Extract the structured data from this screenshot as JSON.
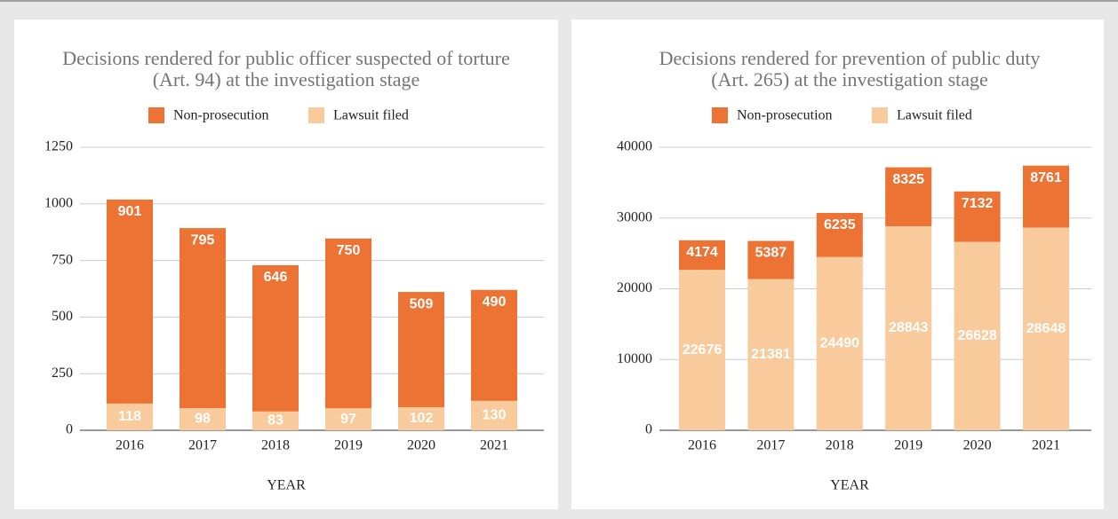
{
  "chart_data": [
    {
      "type": "bar",
      "stacked": true,
      "title": [
        "Decisions rendered for public officer suspected of torture",
        "(Art. 94) at the investigation stage"
      ],
      "xlabel": "YEAR",
      "categories": [
        "2016",
        "2017",
        "2018",
        "2019",
        "2020",
        "2021"
      ],
      "series": [
        {
          "name": "Non-prosecution",
          "color": "#ec7333",
          "values": [
            901,
            795,
            646,
            750,
            509,
            490
          ]
        },
        {
          "name": "Lawsuit filed",
          "color": "#f9cb9c",
          "values": [
            118,
            98,
            83,
            97,
            102,
            130
          ]
        }
      ],
      "ylim": [
        0,
        1250
      ],
      "yticks": [
        0,
        250,
        500,
        750,
        1000,
        1250
      ],
      "grid": true,
      "legend": "top"
    },
    {
      "type": "bar",
      "stacked": true,
      "title": [
        "Decisions rendered for prevention of public duty",
        "(Art. 265) at the investigation stage"
      ],
      "xlabel": "YEAR",
      "categories": [
        "2016",
        "2017",
        "2018",
        "2019",
        "2020",
        "2021"
      ],
      "series": [
        {
          "name": "Non-prosecution",
          "color": "#ec7333",
          "values": [
            4174,
            5387,
            6235,
            8325,
            7132,
            8761
          ]
        },
        {
          "name": "Lawsuit filed",
          "color": "#f9cb9c",
          "values": [
            22676,
            21381,
            24490,
            28843,
            26628,
            28648
          ]
        }
      ],
      "ylim": [
        0,
        40000
      ],
      "yticks": [
        0,
        10000,
        20000,
        30000,
        40000
      ],
      "grid": true,
      "legend": "top"
    }
  ]
}
